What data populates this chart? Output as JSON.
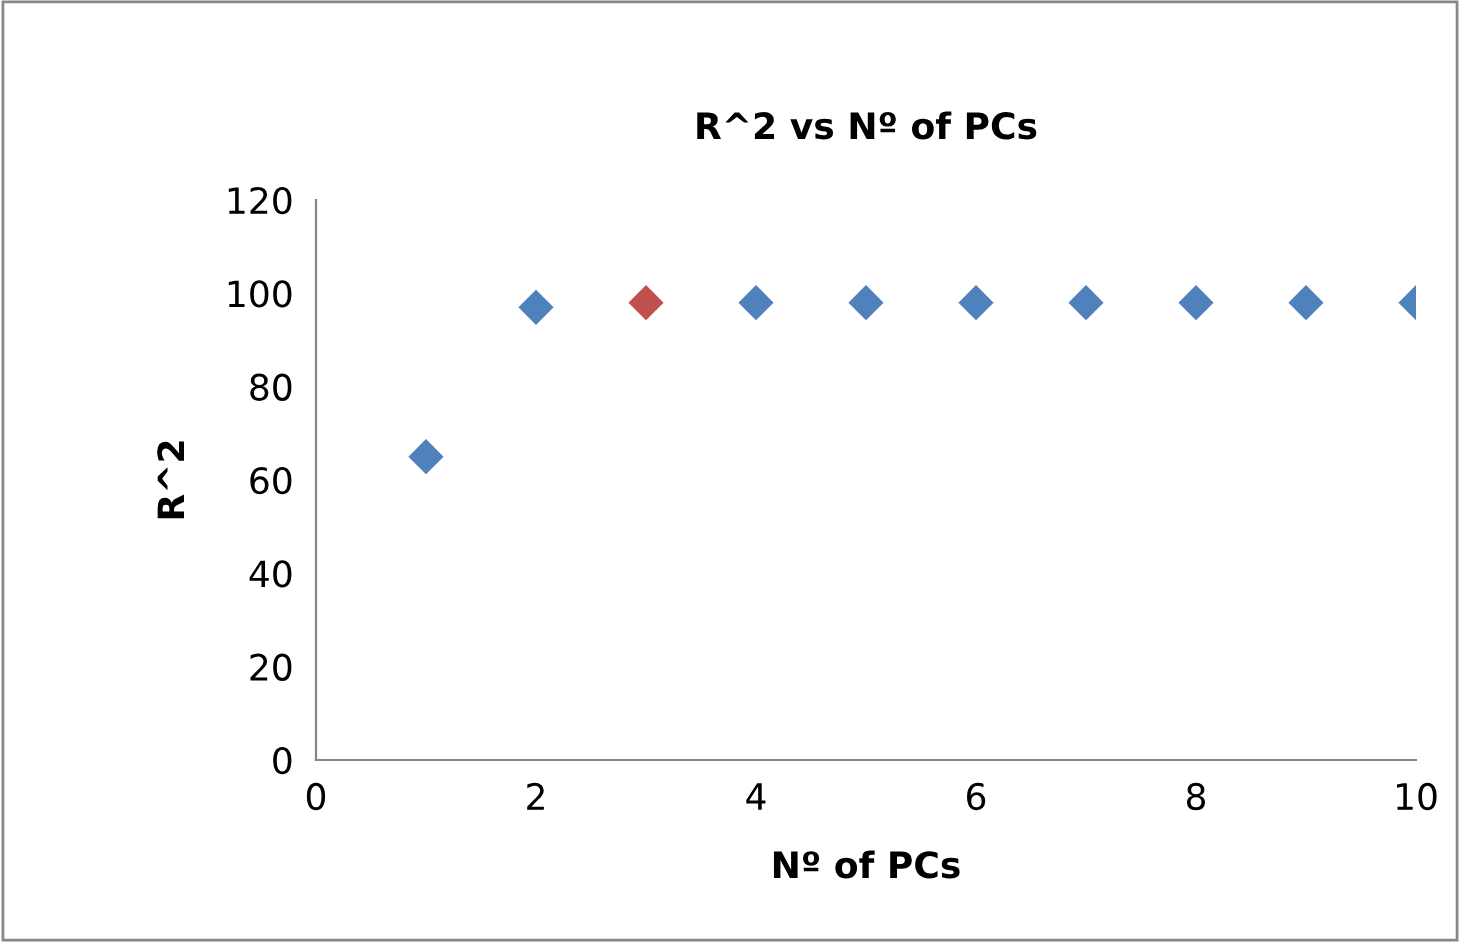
{
  "chart_data": {
    "type": "scatter",
    "title": "R^2 vs Nº of PCs",
    "xlabel": "Nº of PCs",
    "ylabel": "R^2",
    "x": [
      1,
      2,
      3,
      4,
      5,
      6,
      7,
      8,
      9,
      10
    ],
    "values": [
      65,
      97,
      98,
      98,
      98,
      98,
      98,
      98,
      98,
      98
    ],
    "colors": [
      "#4f81bd",
      "#4f81bd",
      "#c0504d",
      "#4f81bd",
      "#4f81bd",
      "#4f81bd",
      "#4f81bd",
      "#4f81bd",
      "#4f81bd",
      "#4f81bd"
    ],
    "xlim": [
      0,
      10
    ],
    "xticks": [
      0,
      2,
      4,
      6,
      8,
      10
    ],
    "ylim": [
      0,
      120
    ],
    "yticks": [
      0,
      20,
      40,
      60,
      80,
      100,
      120
    ],
    "grid": false,
    "marker": "diamond"
  }
}
